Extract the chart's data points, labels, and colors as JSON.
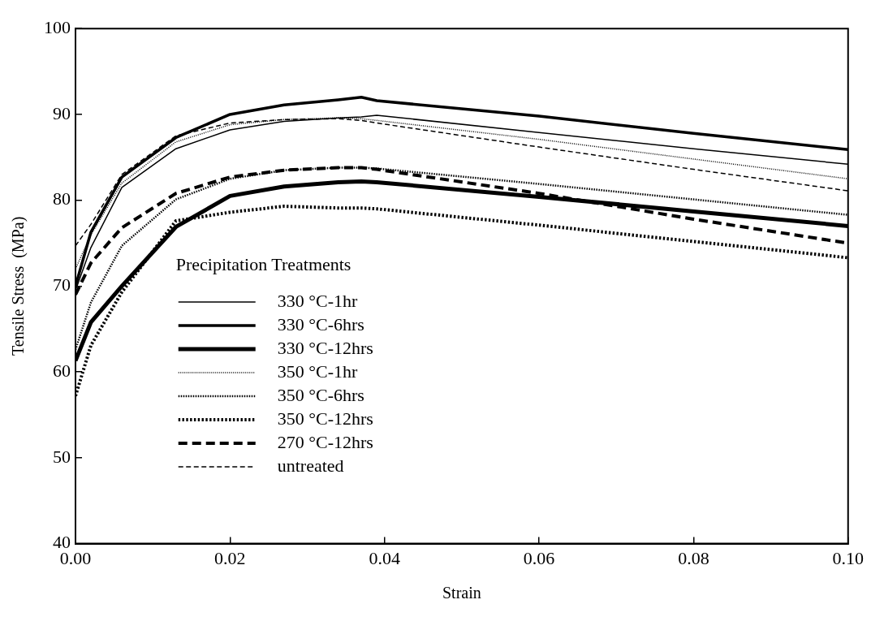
{
  "chart_data": {
    "type": "line",
    "xlabel": "Strain",
    "ylabel": "Tensile Stress  (MPa)",
    "legend_title": "Precipitation Treatments",
    "legend": "bottom left",
    "grid": false,
    "marker": "none",
    "xlim": [
      0,
      0.1
    ],
    "ylim": [
      40,
      100
    ],
    "xticks": [
      {
        "value": 0,
        "label": "0.00"
      },
      {
        "value": 0.02,
        "label": "0.02"
      },
      {
        "value": 0.04,
        "label": "0.04"
      },
      {
        "value": 0.06,
        "label": "0.06"
      },
      {
        "value": 0.08,
        "label": "0.08"
      },
      {
        "value": 0.1,
        "label": "0.10"
      }
    ],
    "yticks": [
      40,
      50,
      60,
      70,
      80,
      90,
      100
    ],
    "x": [
      0,
      0.002,
      0.006,
      0.013,
      0.02,
      0.027,
      0.034,
      0.037,
      0.039,
      0.06,
      0.08,
      0.1
    ],
    "series": [
      {
        "name": "330 °C-1hr",
        "color": "#000000",
        "line_style": "solid",
        "values": [
          69.5,
          74.5,
          81.5,
          86,
          88.2,
          89.2,
          89.6,
          89.7,
          89.9,
          87.9,
          86,
          84.2
        ]
      },
      {
        "name": "330 °C-6hrs",
        "color": "#000000",
        "line_style": "solid",
        "values": [
          70,
          76.3,
          82.7,
          87.3,
          90,
          91.1,
          91.7,
          92,
          91.6,
          89.8,
          87.8,
          85.9
        ]
      },
      {
        "name": "330 °C-12hrs",
        "color": "#000000",
        "line_style": "solid",
        "values": [
          61.3,
          65.8,
          70,
          76.9,
          80.5,
          81.6,
          82.1,
          82.2,
          82.1,
          80.4,
          78.7,
          77
        ]
      },
      {
        "name": "350 °C-1hr",
        "color": "#000000",
        "line_style": "dotted",
        "values": [
          72,
          76,
          82,
          86.8,
          88.8,
          89.4,
          89.6,
          89.5,
          89.3,
          87.1,
          84.8,
          82.5
        ]
      },
      {
        "name": "350 °C-6hrs",
        "color": "#000000",
        "line_style": "dotted",
        "values": [
          62.6,
          68.1,
          74.7,
          80.1,
          82.5,
          83.5,
          83.8,
          83.8,
          83.7,
          81.9,
          80.1,
          78.3
        ]
      },
      {
        "name": "350 °C-12hrs",
        "color": "#000000",
        "line_style": "dotted",
        "values": [
          57.2,
          63.1,
          69.3,
          77.6,
          78.6,
          79.3,
          79.1,
          79.1,
          79,
          77.1,
          75.2,
          73.3
        ]
      },
      {
        "name": "270 °C-12hrs",
        "color": "#000000",
        "line_style": "dashed",
        "values": [
          69,
          72.7,
          76.8,
          80.8,
          82.7,
          83.5,
          83.8,
          83.8,
          83.6,
          80.8,
          77.8,
          75
        ]
      },
      {
        "name": "untreated",
        "color": "#000000",
        "line_style": "dashed",
        "values": [
          74.7,
          77.2,
          83,
          87.5,
          89,
          89.4,
          89.5,
          89.3,
          89,
          86.2,
          83.6,
          81.1
        ]
      }
    ]
  }
}
